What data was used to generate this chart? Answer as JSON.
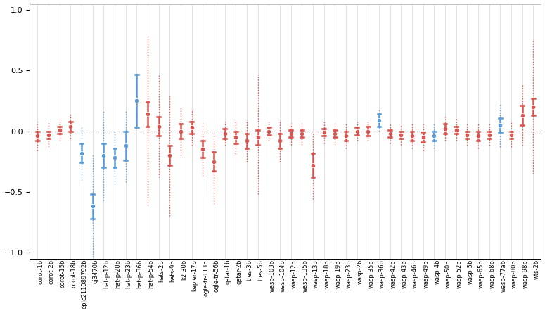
{
  "systems": [
    "corot-1b",
    "corot-2b",
    "corot-15b",
    "corot-18b",
    "epic211089792b",
    "gj3470b",
    "hat-p-12b",
    "hat-p-20b",
    "hat-p-23b",
    "hat-p-36b",
    "hat-p-54b",
    "hats-2b",
    "hats-9b",
    "k2-30b",
    "kepler-17b",
    "ogle-tr-113b",
    "ogle-tr-56b",
    "qatar-1b",
    "qatar-2b",
    "tres-3b",
    "tres-5b",
    "wasp-103b",
    "wasp-104b",
    "wasp-12b",
    "wasp-135b",
    "wasp-13b",
    "wasp-18b",
    "wasp-19b",
    "wasp-23b",
    "wasp-2b",
    "wasp-35b",
    "wasp-36b",
    "wasp-42b",
    "wasp-43b",
    "wasp-46b",
    "wasp-49b",
    "wasp-4b",
    "wasp-50b",
    "wasp-52b",
    "wasp-5b",
    "wasp-65b",
    "wasp-68b",
    "wasp-77ab",
    "wasp-80b",
    "wasp-98b",
    "wts-2b"
  ],
  "colors": [
    "red",
    "red",
    "red",
    "red",
    "blue",
    "blue",
    "blue",
    "blue",
    "blue",
    "blue",
    "red",
    "red",
    "red",
    "red",
    "red",
    "red",
    "red",
    "red",
    "red",
    "red",
    "red",
    "red",
    "red",
    "red",
    "red",
    "red",
    "red",
    "red",
    "red",
    "red",
    "red",
    "blue",
    "red",
    "red",
    "red",
    "red",
    "blue",
    "red",
    "red",
    "red",
    "red",
    "red",
    "blue",
    "red",
    "red",
    "red"
  ],
  "val": [
    -0.04,
    -0.03,
    0.01,
    0.04,
    -0.18,
    -0.62,
    -0.2,
    -0.22,
    -0.12,
    0.25,
    0.14,
    0.04,
    -0.2,
    0.0,
    0.03,
    -0.15,
    -0.25,
    -0.02,
    -0.05,
    -0.08,
    -0.05,
    0.0,
    -0.08,
    -0.02,
    -0.02,
    -0.28,
    -0.01,
    -0.02,
    -0.04,
    0.0,
    0.0,
    0.09,
    -0.02,
    -0.03,
    -0.04,
    -0.05,
    -0.04,
    0.02,
    0.01,
    -0.03,
    -0.04,
    -0.03,
    0.05,
    -0.03,
    0.13,
    0.2
  ],
  "err1_lo": [
    0.04,
    0.03,
    0.03,
    0.04,
    0.08,
    0.1,
    0.1,
    0.08,
    0.12,
    0.22,
    0.1,
    0.08,
    0.08,
    0.06,
    0.05,
    0.07,
    0.08,
    0.04,
    0.05,
    0.06,
    0.06,
    0.03,
    0.06,
    0.03,
    0.03,
    0.1,
    0.03,
    0.03,
    0.04,
    0.03,
    0.04,
    0.05,
    0.03,
    0.03,
    0.04,
    0.04,
    0.04,
    0.04,
    0.03,
    0.03,
    0.04,
    0.03,
    0.06,
    0.03,
    0.08,
    0.07
  ],
  "err1_hi": [
    0.04,
    0.03,
    0.03,
    0.04,
    0.08,
    0.1,
    0.1,
    0.08,
    0.12,
    0.22,
    0.1,
    0.08,
    0.08,
    0.06,
    0.05,
    0.07,
    0.08,
    0.04,
    0.05,
    0.06,
    0.06,
    0.03,
    0.06,
    0.03,
    0.03,
    0.1,
    0.03,
    0.03,
    0.04,
    0.03,
    0.04,
    0.05,
    0.03,
    0.03,
    0.04,
    0.04,
    0.04,
    0.04,
    0.03,
    0.03,
    0.04,
    0.03,
    0.06,
    0.03,
    0.08,
    0.07
  ],
  "err3_lo": [
    0.12,
    0.1,
    0.09,
    0.1,
    0.22,
    0.44,
    0.37,
    0.22,
    0.3,
    0.23,
    0.75,
    0.42,
    0.5,
    0.2,
    0.15,
    0.22,
    0.35,
    0.1,
    0.14,
    0.17,
    0.47,
    0.08,
    0.17,
    0.09,
    0.09,
    0.28,
    0.09,
    0.09,
    0.1,
    0.08,
    0.08,
    0.09,
    0.08,
    0.08,
    0.1,
    0.11,
    0.1,
    0.1,
    0.09,
    0.09,
    0.1,
    0.09,
    0.18,
    0.1,
    0.25,
    0.55
  ],
  "err3_hi": [
    0.12,
    0.1,
    0.09,
    0.1,
    0.22,
    0.44,
    0.37,
    0.22,
    0.3,
    0.23,
    0.65,
    0.42,
    0.5,
    0.2,
    0.15,
    0.22,
    0.25,
    0.1,
    0.14,
    0.17,
    0.52,
    0.08,
    0.17,
    0.09,
    0.09,
    0.28,
    0.09,
    0.09,
    0.1,
    0.08,
    0.08,
    0.09,
    0.08,
    0.08,
    0.1,
    0.11,
    0.1,
    0.1,
    0.09,
    0.09,
    0.1,
    0.09,
    0.18,
    0.1,
    0.25,
    0.55
  ],
  "ylim": [
    -1.05,
    1.05
  ],
  "yticks": [
    -1.0,
    -0.5,
    0.0,
    0.5,
    1.0
  ],
  "color_red": "#d9534f",
  "color_blue": "#5b9bd5",
  "marker_size": 4.5,
  "lw_solid": 1.8,
  "lw_dot": 1.0
}
